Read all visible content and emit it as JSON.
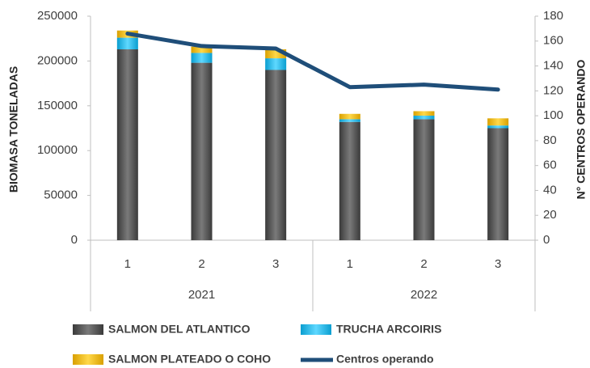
{
  "chart_data": {
    "type": "bar-line",
    "categories": [
      "1",
      "2",
      "3",
      "1",
      "2",
      "3"
    ],
    "groups": [
      {
        "name": "2021",
        "count": 3
      },
      {
        "name": "2022",
        "count": 3
      }
    ],
    "series": [
      {
        "name": "SALMON DEL ATLANTICO",
        "color": "#595959",
        "values": [
          213000,
          198000,
          190000,
          132000,
          135000,
          125000
        ],
        "stacked": true
      },
      {
        "name": "TRUCHA ARCOIRIS",
        "color": "#1fc0f0",
        "values": [
          13000,
          11000,
          13000,
          3000,
          4000,
          3000
        ],
        "stacked": true
      },
      {
        "name": "SALMON PLATEADO O COHO",
        "color": "#ffc000",
        "values": [
          8000,
          7000,
          10000,
          6000,
          5000,
          8000
        ],
        "stacked": true
      },
      {
        "name": "Centros operando",
        "color": "#1f4e79",
        "values": [
          166,
          156,
          154,
          123,
          125,
          121
        ],
        "axis": "y2",
        "kind": "line"
      }
    ],
    "ylabel": "BIOMASA TONELADAS",
    "y2label": "N° CENTROS OPERANDO",
    "ylim": [
      0,
      250000
    ],
    "yticks": [
      0,
      50000,
      100000,
      150000,
      200000,
      250000
    ],
    "y2lim": [
      0,
      180
    ],
    "y2ticks": [
      0,
      20,
      40,
      60,
      80,
      100,
      120,
      140,
      160,
      180
    ],
    "grid": false
  }
}
